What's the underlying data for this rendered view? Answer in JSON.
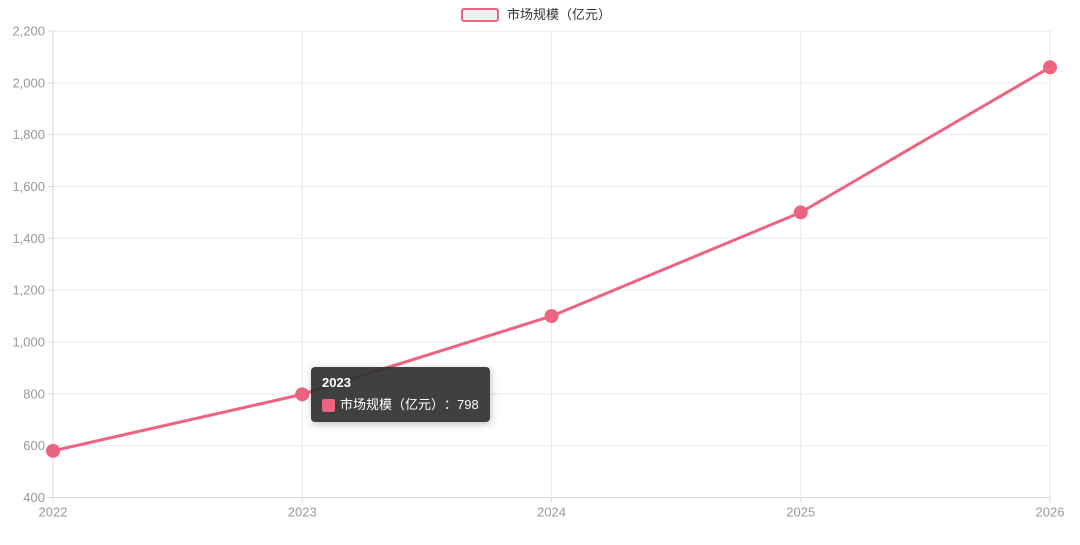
{
  "legend": {
    "label": "市场规模（亿元）"
  },
  "tooltip": {
    "title": "2023",
    "series_label": "市场规模（亿元）",
    "separator": "：",
    "value": "798"
  },
  "colors": {
    "series": "#ec6580",
    "grid_line": "#e9e9ed",
    "axis_line": "#d8d8dc",
    "axis_label": "#999999",
    "legend_text": "#333333",
    "legend_swatch_fill": "#f0f0f0",
    "tooltip_bg": "rgba(48,48,48,0.92)",
    "tooltip_text": "#ffffff",
    "background": "#ffffff"
  },
  "chart_data": {
    "type": "line",
    "title": "",
    "categories": [
      "2022",
      "2023",
      "2024",
      "2025",
      "2026"
    ],
    "series": [
      {
        "name": "市场规模（亿元）",
        "values": [
          580,
          798,
          1100,
          1500,
          2060
        ]
      }
    ],
    "xlabel": "",
    "ylabel": "",
    "ylim": [
      400,
      2200
    ],
    "ytick_step": 200,
    "ytick_labels": [
      "400",
      "600",
      "800",
      "1,000",
      "1,200",
      "1,400",
      "1,600",
      "1,800",
      "2,000",
      "2,200"
    ],
    "grid": true,
    "legend_position": "top-center",
    "highlighted_point": {
      "category": "2023",
      "value": 798
    }
  }
}
